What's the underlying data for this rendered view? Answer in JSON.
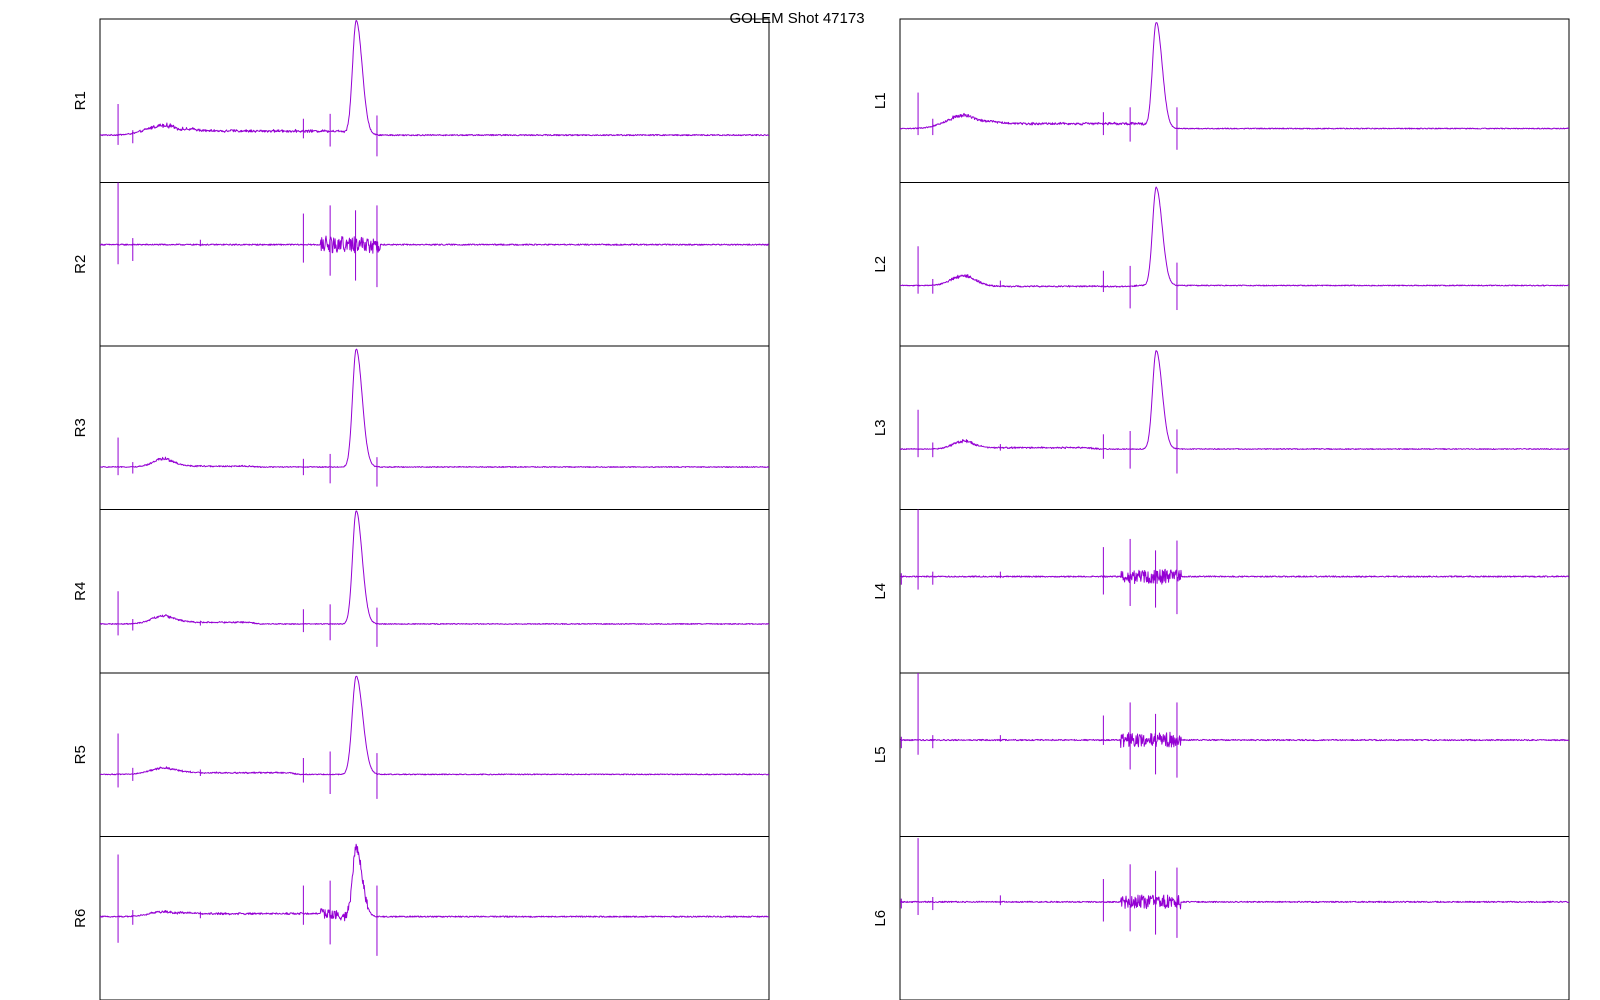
{
  "figure": {
    "title": "GOLEM Shot 47173",
    "trace_color": "#9400d3"
  },
  "chart_data": {
    "type": "line",
    "title": "GOLEM Shot 47173",
    "x_range": [
      0,
      100
    ],
    "y_range": [
      0,
      1
    ],
    "grid": false,
    "legend": "none",
    "columns": [
      "left",
      "right"
    ],
    "panels": [
      {
        "name": "R1",
        "column": "left",
        "row": 0,
        "baseline": 0.29,
        "noise": 0.004,
        "features": [
          {
            "type": "bump",
            "center": 9.5,
            "width": 3.5,
            "height": 0.06,
            "jitter": 0.012
          },
          {
            "type": "plateau",
            "start": 12,
            "end": 38,
            "level": 0.025,
            "jitter": 0.006
          },
          {
            "type": "peak",
            "center": 38.3,
            "width": 0.55,
            "height": 0.7
          },
          {
            "type": "spike",
            "x": 2.7,
            "up": 0.19,
            "down": 0.06
          },
          {
            "type": "spike",
            "x": 4.9,
            "up": 0.03,
            "down": 0.05
          },
          {
            "type": "spike",
            "x": 30.4,
            "up": 0.1,
            "down": 0.02
          },
          {
            "type": "spike",
            "x": 34.4,
            "up": 0.13,
            "down": 0.07
          },
          {
            "type": "spike",
            "x": 41.4,
            "up": 0.12,
            "down": 0.13
          }
        ]
      },
      {
        "name": "R2",
        "column": "left",
        "row": 1,
        "baseline": 0.62,
        "noise": 0.004,
        "features": [
          {
            "type": "burst",
            "start": 33,
            "end": 42,
            "amp": 0.05
          },
          {
            "type": "spike",
            "x": 2.7,
            "up": 0.39,
            "down": 0.12
          },
          {
            "type": "spike",
            "x": 4.9,
            "up": 0.04,
            "down": 0.1
          },
          {
            "type": "spike",
            "x": 15,
            "up": 0.03,
            "down": 0.01
          },
          {
            "type": "spike",
            "x": 30.4,
            "up": 0.19,
            "down": 0.11
          },
          {
            "type": "spike",
            "x": 34.4,
            "up": 0.24,
            "down": 0.19
          },
          {
            "type": "spike",
            "x": 38.2,
            "up": 0.21,
            "down": 0.22
          },
          {
            "type": "spike",
            "x": 41.4,
            "up": 0.24,
            "down": 0.26
          }
        ]
      },
      {
        "name": "R3",
        "column": "left",
        "row": 2,
        "baseline": 0.26,
        "noise": 0.003,
        "features": [
          {
            "type": "bump",
            "center": 9.5,
            "width": 2.2,
            "height": 0.05,
            "jitter": 0.01
          },
          {
            "type": "plateau",
            "start": 11,
            "end": 24,
            "level": 0.005,
            "jitter": 0.003
          },
          {
            "type": "peak",
            "center": 38.3,
            "width": 0.55,
            "height": 0.72
          },
          {
            "type": "spike",
            "x": 2.7,
            "up": 0.18,
            "down": 0.05
          },
          {
            "type": "spike",
            "x": 4.9,
            "up": 0.03,
            "down": 0.04
          },
          {
            "type": "spike",
            "x": 30.4,
            "up": 0.05,
            "down": 0.05
          },
          {
            "type": "spike",
            "x": 34.4,
            "up": 0.08,
            "down": 0.1
          },
          {
            "type": "spike",
            "x": 41.4,
            "up": 0.06,
            "down": 0.12
          }
        ]
      },
      {
        "name": "R4",
        "column": "left",
        "row": 3,
        "baseline": 0.3,
        "noise": 0.003,
        "features": [
          {
            "type": "bump",
            "center": 9.5,
            "width": 2.5,
            "height": 0.05,
            "jitter": 0.008
          },
          {
            "type": "plateau",
            "start": 11,
            "end": 24,
            "level": 0.01,
            "jitter": 0.003
          },
          {
            "type": "peak",
            "center": 38.3,
            "width": 0.55,
            "height": 0.69
          },
          {
            "type": "spike",
            "x": 2.7,
            "up": 0.2,
            "down": 0.07
          },
          {
            "type": "spike",
            "x": 4.9,
            "up": 0.03,
            "down": 0.04
          },
          {
            "type": "spike",
            "x": 15,
            "up": 0.02,
            "down": 0.01
          },
          {
            "type": "spike",
            "x": 30.4,
            "up": 0.09,
            "down": 0.05
          },
          {
            "type": "spike",
            "x": 34.4,
            "up": 0.12,
            "down": 0.1
          },
          {
            "type": "spike",
            "x": 41.4,
            "up": 0.1,
            "down": 0.14
          }
        ]
      },
      {
        "name": "R5",
        "column": "left",
        "row": 4,
        "baseline": 0.38,
        "noise": 0.003,
        "features": [
          {
            "type": "bump",
            "center": 9.5,
            "width": 2.8,
            "height": 0.04,
            "jitter": 0.006
          },
          {
            "type": "plateau",
            "start": 11,
            "end": 30,
            "level": 0.01,
            "jitter": 0.003
          },
          {
            "type": "peak",
            "center": 38.3,
            "width": 0.6,
            "height": 0.6
          },
          {
            "type": "spike",
            "x": 2.7,
            "up": 0.25,
            "down": 0.08
          },
          {
            "type": "spike",
            "x": 4.9,
            "up": 0.04,
            "down": 0.04
          },
          {
            "type": "spike",
            "x": 15,
            "up": 0.03,
            "down": 0.01
          },
          {
            "type": "spike",
            "x": 30.4,
            "up": 0.1,
            "down": 0.05
          },
          {
            "type": "spike",
            "x": 34.4,
            "up": 0.14,
            "down": 0.12
          },
          {
            "type": "spike",
            "x": 41.4,
            "up": 0.13,
            "down": 0.15
          }
        ]
      },
      {
        "name": "R6",
        "column": "left",
        "row": 5,
        "baseline": 0.51,
        "noise": 0.004,
        "features": [
          {
            "type": "bump",
            "center": 9.5,
            "width": 3,
            "height": 0.03,
            "jitter": 0.006
          },
          {
            "type": "plateau",
            "start": 11,
            "end": 36,
            "level": 0.018,
            "jitter": 0.004
          },
          {
            "type": "burst",
            "start": 33,
            "end": 40,
            "amp": 0.03
          },
          {
            "type": "peak",
            "center": 38.3,
            "width": 0.55,
            "height": 0.42
          },
          {
            "type": "spike",
            "x": 2.7,
            "up": 0.38,
            "down": 0.16
          },
          {
            "type": "spike",
            "x": 4.9,
            "up": 0.04,
            "down": 0.05
          },
          {
            "type": "spike",
            "x": 15,
            "up": 0.03,
            "down": 0.01
          },
          {
            "type": "spike",
            "x": 30.4,
            "up": 0.19,
            "down": 0.05
          },
          {
            "type": "spike",
            "x": 34.4,
            "up": 0.22,
            "down": 0.17
          },
          {
            "type": "spike",
            "x": 41.4,
            "up": 0.19,
            "down": 0.24
          }
        ]
      },
      {
        "name": "L1",
        "column": "right",
        "row": 0,
        "baseline": 0.33,
        "noise": 0.003,
        "features": [
          {
            "type": "bump",
            "center": 9.5,
            "width": 3.5,
            "height": 0.08,
            "jitter": 0.012
          },
          {
            "type": "plateau",
            "start": 12,
            "end": 38,
            "level": 0.03,
            "jitter": 0.006
          },
          {
            "type": "peak",
            "center": 38.3,
            "width": 0.55,
            "height": 0.65
          },
          {
            "type": "spike",
            "x": 2.7,
            "up": 0.22,
            "down": 0.04
          },
          {
            "type": "spike",
            "x": 4.9,
            "up": 0.06,
            "down": 0.04
          },
          {
            "type": "spike",
            "x": 30.4,
            "up": 0.1,
            "down": 0.04
          },
          {
            "type": "spike",
            "x": 34.4,
            "up": 0.13,
            "down": 0.08
          },
          {
            "type": "spike",
            "x": 41.4,
            "up": 0.13,
            "down": 0.13
          }
        ]
      },
      {
        "name": "L2",
        "column": "right",
        "row": 1,
        "baseline": 0.37,
        "noise": 0.003,
        "features": [
          {
            "type": "bump",
            "center": 9.5,
            "width": 2.5,
            "height": 0.06,
            "jitter": 0.012
          },
          {
            "type": "plateau",
            "start": 11,
            "end": 36,
            "level": -0.005,
            "jitter": 0.003
          },
          {
            "type": "peak",
            "center": 38.3,
            "width": 0.55,
            "height": 0.6
          },
          {
            "type": "spike",
            "x": 2.7,
            "up": 0.24,
            "down": 0.05
          },
          {
            "type": "spike",
            "x": 4.9,
            "up": 0.04,
            "down": 0.05
          },
          {
            "type": "spike",
            "x": 15,
            "up": 0.03,
            "down": 0.01
          },
          {
            "type": "spike",
            "x": 30.4,
            "up": 0.09,
            "down": 0.04
          },
          {
            "type": "spike",
            "x": 34.4,
            "up": 0.12,
            "down": 0.14
          },
          {
            "type": "spike",
            "x": 41.4,
            "up": 0.14,
            "down": 0.15
          }
        ]
      },
      {
        "name": "L3",
        "column": "right",
        "row": 2,
        "baseline": 0.37,
        "noise": 0.003,
        "features": [
          {
            "type": "bump",
            "center": 9.5,
            "width": 2.2,
            "height": 0.05,
            "jitter": 0.01
          },
          {
            "type": "plateau",
            "start": 11,
            "end": 30,
            "level": 0.008,
            "jitter": 0.003
          },
          {
            "type": "peak",
            "center": 38.3,
            "width": 0.55,
            "height": 0.6
          },
          {
            "type": "spike",
            "x": 2.7,
            "up": 0.24,
            "down": 0.05
          },
          {
            "type": "spike",
            "x": 4.9,
            "up": 0.04,
            "down": 0.05
          },
          {
            "type": "spike",
            "x": 15,
            "up": 0.03,
            "down": 0.01
          },
          {
            "type": "spike",
            "x": 30.4,
            "up": 0.09,
            "down": 0.06
          },
          {
            "type": "spike",
            "x": 34.4,
            "up": 0.11,
            "down": 0.12
          },
          {
            "type": "spike",
            "x": 41.4,
            "up": 0.12,
            "down": 0.15
          }
        ]
      },
      {
        "name": "L4",
        "column": "right",
        "row": 3,
        "baseline": 0.59,
        "noise": 0.004,
        "features": [
          {
            "type": "burst",
            "start": 33,
            "end": 42,
            "amp": 0.045
          },
          {
            "type": "spike",
            "x": 0.2,
            "up": 0.02,
            "down": 0.05
          },
          {
            "type": "spike",
            "x": 2.7,
            "up": 0.41,
            "down": 0.08
          },
          {
            "type": "spike",
            "x": 4.9,
            "up": 0.03,
            "down": 0.05
          },
          {
            "type": "spike",
            "x": 15,
            "up": 0.03,
            "down": 0.01
          },
          {
            "type": "spike",
            "x": 30.4,
            "up": 0.18,
            "down": 0.11
          },
          {
            "type": "spike",
            "x": 34.4,
            "up": 0.23,
            "down": 0.18
          },
          {
            "type": "spike",
            "x": 38.2,
            "up": 0.16,
            "down": 0.19
          },
          {
            "type": "spike",
            "x": 41.4,
            "up": 0.22,
            "down": 0.23
          }
        ]
      },
      {
        "name": "L5",
        "column": "right",
        "row": 4,
        "baseline": 0.59,
        "noise": 0.004,
        "features": [
          {
            "type": "burst",
            "start": 33,
            "end": 42,
            "amp": 0.045
          },
          {
            "type": "spike",
            "x": 0.2,
            "up": 0.02,
            "down": 0.05
          },
          {
            "type": "spike",
            "x": 2.7,
            "up": 0.41,
            "down": 0.09
          },
          {
            "type": "spike",
            "x": 4.9,
            "up": 0.03,
            "down": 0.05
          },
          {
            "type": "spike",
            "x": 15,
            "up": 0.03,
            "down": 0.01
          },
          {
            "type": "spike",
            "x": 30.4,
            "up": 0.15,
            "down": 0.03
          },
          {
            "type": "spike",
            "x": 34.4,
            "up": 0.23,
            "down": 0.18
          },
          {
            "type": "spike",
            "x": 38.2,
            "up": 0.16,
            "down": 0.21
          },
          {
            "type": "spike",
            "x": 41.4,
            "up": 0.23,
            "down": 0.23
          }
        ]
      },
      {
        "name": "L6",
        "column": "right",
        "row": 5,
        "baseline": 0.6,
        "noise": 0.004,
        "features": [
          {
            "type": "burst",
            "start": 33,
            "end": 42,
            "amp": 0.04
          },
          {
            "type": "spike",
            "x": 0.2,
            "up": 0.02,
            "down": 0.04
          },
          {
            "type": "spike",
            "x": 2.7,
            "up": 0.39,
            "down": 0.08
          },
          {
            "type": "spike",
            "x": 4.9,
            "up": 0.03,
            "down": 0.05
          },
          {
            "type": "spike",
            "x": 15,
            "up": 0.04,
            "down": 0.02
          },
          {
            "type": "spike",
            "x": 30.4,
            "up": 0.14,
            "down": 0.12
          },
          {
            "type": "spike",
            "x": 34.4,
            "up": 0.23,
            "down": 0.18
          },
          {
            "type": "spike",
            "x": 38.2,
            "up": 0.19,
            "down": 0.2
          },
          {
            "type": "spike",
            "x": 41.4,
            "up": 0.21,
            "down": 0.22
          }
        ]
      }
    ]
  }
}
